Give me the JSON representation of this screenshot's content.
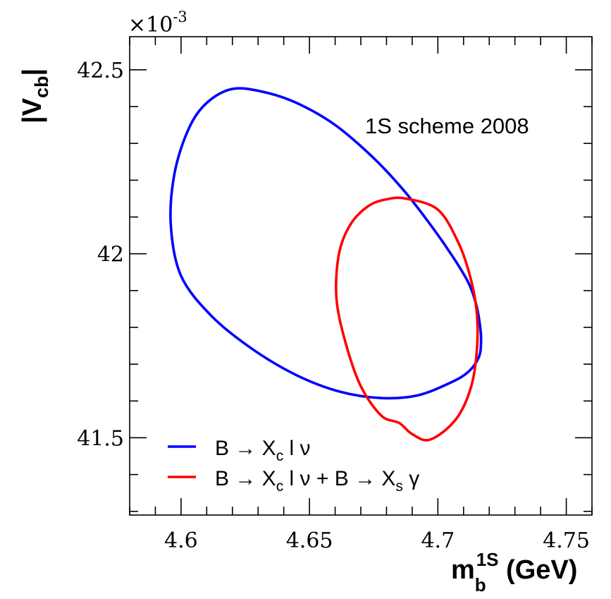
{
  "chart_data": {
    "type": "line",
    "title": "",
    "annotation": "1S scheme 2008",
    "xlabel": {
      "main": "m",
      "sub": "b",
      "sup": "1S",
      "unit": " (GeV)"
    },
    "ylabel": {
      "bar_left": "|",
      "main": "V",
      "sub": "cb",
      "bar_right": "|"
    },
    "y_multiplier": {
      "prefix": "×10",
      "exp": "-3"
    },
    "xlim": [
      4.58,
      4.76
    ],
    "ylim": [
      41.29,
      42.59
    ],
    "x_ticks": [
      {
        "value": 4.6,
        "label": "4.6"
      },
      {
        "value": 4.65,
        "label": "4.65"
      },
      {
        "value": 4.7,
        "label": "4.7"
      },
      {
        "value": 4.75,
        "label": "4.75"
      }
    ],
    "y_ticks": [
      {
        "value": 41.5,
        "label": "41.5"
      },
      {
        "value": 42.0,
        "label": "42"
      },
      {
        "value": 42.5,
        "label": "42.5"
      }
    ],
    "x_minor_step": 0.01,
    "y_minor_step": 0.1,
    "grid": false,
    "legend_position": "bottom-left",
    "series": [
      {
        "name": "B → X_c l ν",
        "legend": {
          "a": "B → X",
          "sub": "c",
          "b": " l ν"
        },
        "color": "#0000ff",
        "closed": true,
        "x": [
          4.62,
          4.632,
          4.645,
          4.66,
          4.675,
          4.687,
          4.697,
          4.706,
          4.712,
          4.715,
          4.7165,
          4.7168,
          4.716,
          4.712,
          4.705,
          4.692,
          4.678,
          4.662,
          4.645,
          4.628,
          4.612,
          4.6,
          4.596,
          4.5975,
          4.603,
          4.61,
          4.62
        ],
        "y": [
          42.448,
          42.44,
          42.41,
          42.35,
          42.26,
          42.17,
          42.08,
          41.99,
          41.92,
          41.86,
          41.8,
          41.76,
          41.72,
          41.68,
          41.65,
          41.615,
          41.608,
          41.625,
          41.67,
          41.74,
          41.83,
          41.94,
          42.08,
          42.22,
          42.34,
          42.41,
          42.448
        ]
      },
      {
        "name": "B → X_c l ν + B → X_s γ",
        "legend": {
          "a": "B → X",
          "sub": "c",
          "b": " l ν + B → X",
          "sub2": "s",
          "c": " γ"
        },
        "color": "#ff0000",
        "closed": true,
        "x": [
          4.6875,
          4.7,
          4.708,
          4.7125,
          4.715,
          4.7153,
          4.713,
          4.707,
          4.697,
          4.69,
          4.685,
          4.678,
          4.67,
          4.664,
          4.6605,
          4.6615,
          4.666,
          4.673,
          4.68,
          4.6875
        ],
        "y": [
          42.15,
          42.12,
          42.03,
          41.94,
          41.85,
          41.75,
          41.64,
          41.55,
          41.495,
          41.51,
          41.54,
          41.56,
          41.64,
          41.76,
          41.88,
          42.0,
          42.08,
          42.13,
          42.148,
          42.15
        ]
      }
    ]
  }
}
